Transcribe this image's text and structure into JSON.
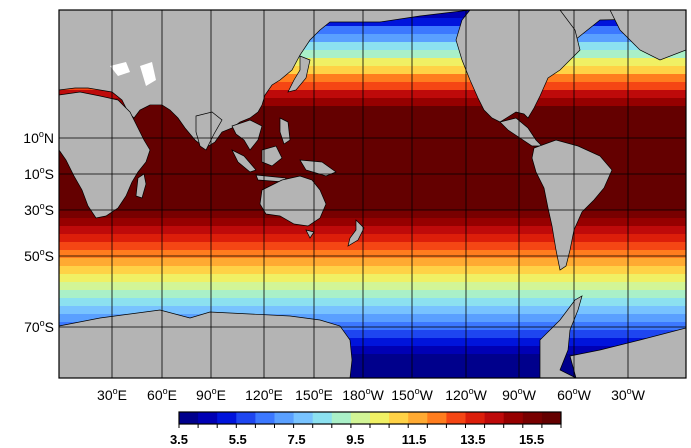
{
  "map": {
    "lat_labels": [
      {
        "deg": "10",
        "hemi": "N"
      },
      {
        "deg": "10",
        "hemi": "S"
      },
      {
        "deg": "30",
        "hemi": "S"
      },
      {
        "deg": "50",
        "hemi": "S"
      },
      {
        "deg": "70",
        "hemi": "S"
      }
    ],
    "lon_labels": [
      {
        "deg": "30",
        "hemi": "E"
      },
      {
        "deg": "60",
        "hemi": "E"
      },
      {
        "deg": "90",
        "hemi": "E"
      },
      {
        "deg": "120",
        "hemi": "E"
      },
      {
        "deg": "150",
        "hemi": "E"
      },
      {
        "deg": "180",
        "hemi": "W"
      },
      {
        "deg": "150",
        "hemi": "W"
      },
      {
        "deg": "120",
        "hemi": "W"
      },
      {
        "deg": "90",
        "hemi": "W"
      },
      {
        "deg": "60",
        "hemi": "W"
      },
      {
        "deg": "30",
        "hemi": "W"
      }
    ],
    "land_color": "#b4b4b4",
    "frame_color": "#000000"
  },
  "colorbar": {
    "tick_labels": [
      "3.5",
      "5.5",
      "7.5",
      "9.5",
      "11.5",
      "13.5",
      "15.5"
    ],
    "min": 3.5,
    "max": 16.5,
    "colors": [
      "#00008c",
      "#0000b4",
      "#0014dc",
      "#1e46f0",
      "#3c78ff",
      "#5aa0ff",
      "#78c3ff",
      "#8ce1f0",
      "#aaf0c8",
      "#d2f596",
      "#f0f064",
      "#ffd246",
      "#ffaa32",
      "#ff7d1e",
      "#f54614",
      "#dc1e0a",
      "#be0a0a",
      "#960000",
      "#780000",
      "#640000"
    ]
  }
}
